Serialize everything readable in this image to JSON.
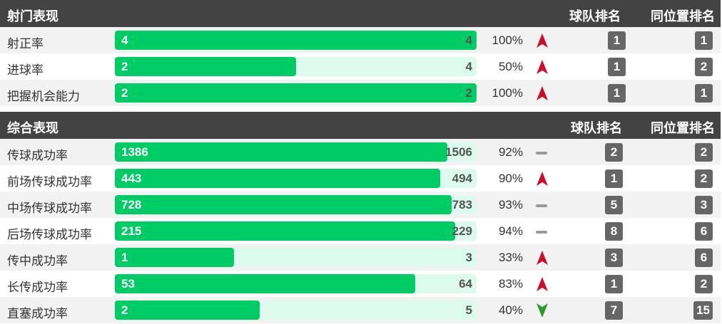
{
  "sections": [
    {
      "title": "射门表现",
      "col_team": "球队排名",
      "col_pos": "同位置排名",
      "rows": [
        {
          "label": "射正率",
          "value": "4",
          "total": "4",
          "fraction": 1.0,
          "pct": "100%",
          "trend": "up",
          "team_rank": "1",
          "pos_rank": "1"
        },
        {
          "label": "进球率",
          "value": "2",
          "total": "4",
          "fraction": 0.5,
          "pct": "50%",
          "trend": "up",
          "team_rank": "1",
          "pos_rank": "2"
        },
        {
          "label": "把握机会能力",
          "value": "2",
          "total": "2",
          "fraction": 1.0,
          "pct": "100%",
          "trend": "up",
          "team_rank": "1",
          "pos_rank": "1"
        }
      ]
    },
    {
      "title": "综合表现",
      "col_team": "球队排名",
      "col_pos": "同位置排名",
      "rows": [
        {
          "label": "传球成功率",
          "value": "1386",
          "total": "1506",
          "fraction": 0.92,
          "pct": "92%",
          "trend": "flat",
          "team_rank": "2",
          "pos_rank": "2"
        },
        {
          "label": "前场传球成功率",
          "value": "443",
          "total": "494",
          "fraction": 0.9,
          "pct": "90%",
          "trend": "up",
          "team_rank": "1",
          "pos_rank": "2"
        },
        {
          "label": "中场传球成功率",
          "value": "728",
          "total": "783",
          "fraction": 0.93,
          "pct": "93%",
          "trend": "flat",
          "team_rank": "5",
          "pos_rank": "3"
        },
        {
          "label": "后场传球成功率",
          "value": "215",
          "total": "229",
          "fraction": 0.94,
          "pct": "94%",
          "trend": "flat",
          "team_rank": "8",
          "pos_rank": "6"
        },
        {
          "label": "传中成功率",
          "value": "1",
          "total": "3",
          "fraction": 0.33,
          "pct": "33%",
          "trend": "up",
          "team_rank": "3",
          "pos_rank": "6"
        },
        {
          "label": "长传成功率",
          "value": "53",
          "total": "64",
          "fraction": 0.83,
          "pct": "83%",
          "trend": "up",
          "team_rank": "1",
          "pos_rank": "2"
        },
        {
          "label": "直塞成功率",
          "value": "2",
          "total": "5",
          "fraction": 0.4,
          "pct": "40%",
          "trend": "down",
          "team_rank": "7",
          "pos_rank": "15"
        }
      ]
    }
  ],
  "colors": {
    "up": "#c8102e",
    "down": "#2e9a2e",
    "flat": "#999999",
    "bar": "#00cc66",
    "track": "#dcfaee"
  }
}
